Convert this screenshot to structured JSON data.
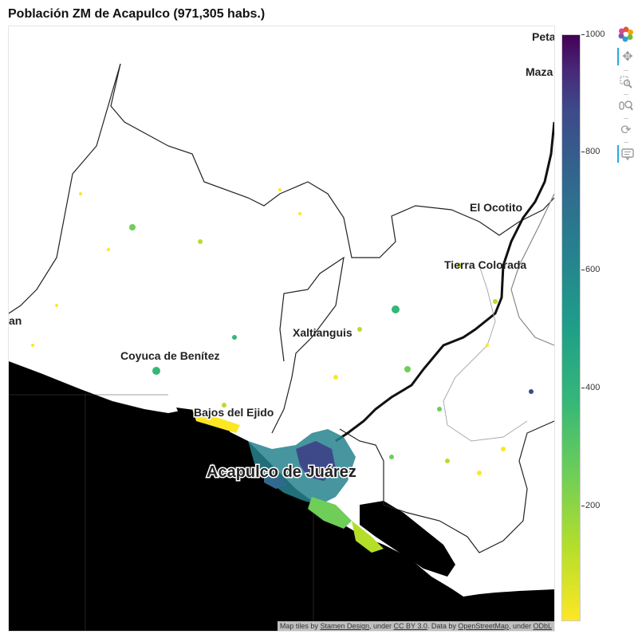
{
  "title": "Población ZM de Acapulco (971,305 habs.)",
  "map": {
    "places": [
      "Peta",
      "Maza",
      "El Ocotito",
      "Tierra Colorada",
      "an",
      "Xaltianguis",
      "Coyuca de Benítez",
      "Bajos del Ejido",
      "Acapulco de Juárez"
    ],
    "attribution": {
      "prefix": "Map tiles by ",
      "stamen": "Stamen Design",
      "mid1": ", under ",
      "ccby": "CC BY 3.0",
      "mid2": ". Data by ",
      "osm": "OpenStreetMap",
      "mid3": ", under ",
      "odbl": "ODbL"
    },
    "colors": {
      "land": "#ffffff",
      "sea": "#000000",
      "road": "#111111",
      "boundary": "#222222"
    }
  },
  "colorbar": {
    "min": 0,
    "max": 1000,
    "ticks": [
      "1000",
      "800",
      "600",
      "400",
      "200"
    ],
    "colormap": "viridis (reversed)"
  },
  "toolbar": {
    "tools": [
      "bokeh-logo",
      "pan-tool-icon",
      "box-zoom-icon",
      "wheel-zoom-icon",
      "reset-icon",
      "hover-icon"
    ]
  }
}
